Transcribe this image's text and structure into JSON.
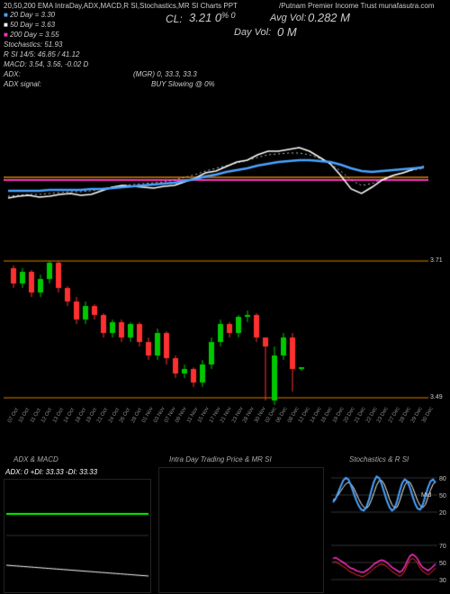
{
  "header": {
    "title_left": "20,50,200  EMA IntraDay,ADX,MACD,R   SI,Stochastics,MR   SI Charts PPT",
    "title_right": "/Putnam Premier Income Trust  munafasutra.com",
    "cl_label": "CL:",
    "cl_value": "3.21 0",
    "cl_unit": "% 0",
    "avg_label": "Avg Vol:",
    "avg_value": "0.282   M",
    "day_vol_label": "Day Vol:",
    "day_vol_value": "0   M"
  },
  "indicators": {
    "lines": [
      {
        "prefix_color": "#4aa3ff",
        "prefix": "■",
        "text": " 20  Day = 3.30"
      },
      {
        "prefix_color": "#ffffff",
        "prefix": "■",
        "text": " 50  Day = 3.63"
      },
      {
        "prefix_color": "#ff30c0",
        "prefix": "■",
        "text": " 200 Day = 3.55"
      },
      {
        "prefix_color": null,
        "prefix": "",
        "text": "Stochastics: 51.93"
      },
      {
        "prefix_color": null,
        "prefix": "",
        "text": "R   SI 14/5: 46.85 / 41.12"
      },
      {
        "prefix_color": null,
        "prefix": "",
        "text": "MACD: 3.54,  3.56, -0.02   D"
      }
    ],
    "mgr": "(MGR) 0, 33.3, 33.3",
    "adx_label": "ADX:",
    "adx_signal_label": "ADX  signal:",
    "adx_signal_value": "BUY Slowing @ 0%"
  },
  "upper_chart": {
    "bg": "#000000",
    "grid_color": "#555555",
    "hline_orange": "#d98000",
    "hline_magenta": "#ff30c0",
    "line_white": "#ffffff",
    "line_blue": "#4aa3ff",
    "dotted": "#bbbbbb",
    "white_series": [
      120,
      118,
      117,
      119,
      118,
      116,
      115,
      117,
      116,
      112,
      108,
      106,
      107,
      108,
      109,
      107,
      106,
      102,
      98,
      92,
      90,
      85,
      80,
      78,
      72,
      68,
      68,
      66,
      64,
      68,
      75,
      82,
      95,
      110,
      115,
      108,
      100,
      95,
      92,
      88,
      85
    ],
    "blue_series": [
      112,
      112,
      112,
      112,
      111,
      111,
      111,
      111,
      110,
      110,
      109,
      108,
      107,
      106,
      105,
      104,
      103,
      101,
      99,
      96,
      94,
      91,
      89,
      87,
      84,
      82,
      80,
      79,
      78,
      78,
      79,
      80,
      83,
      87,
      90,
      91,
      90,
      89,
      88,
      87,
      86
    ],
    "dotted_series": [
      118,
      117,
      116,
      116,
      115,
      114,
      113,
      113,
      112,
      110,
      108,
      106,
      105,
      104,
      103,
      102,
      100,
      97,
      94,
      90,
      87,
      84,
      81,
      78,
      75,
      72,
      71,
      70,
      70,
      72,
      76,
      82,
      90,
      100,
      106,
      104,
      99,
      95,
      92,
      89,
      87
    ],
    "orange_y": 97,
    "magenta_y": 100
  },
  "candle_chart": {
    "up_color": "#00c800",
    "down_color": "#ff3030",
    "hlines": [
      {
        "y": 10,
        "c": "#d98000"
      },
      {
        "y": 162,
        "c": "#d98000"
      }
    ],
    "y_labels": [
      {
        "y": 10,
        "t": "3.71"
      },
      {
        "y": 162,
        "t": "3.49"
      }
    ],
    "candles": [
      {
        "x": 8,
        "o": 18,
        "c": 35,
        "h": 15,
        "l": 40,
        "up": false
      },
      {
        "x": 18,
        "o": 35,
        "c": 22,
        "h": 18,
        "l": 40,
        "up": true
      },
      {
        "x": 28,
        "o": 22,
        "c": 45,
        "h": 20,
        "l": 50,
        "up": false
      },
      {
        "x": 38,
        "o": 45,
        "c": 30,
        "h": 25,
        "l": 50,
        "up": true
      },
      {
        "x": 48,
        "o": 30,
        "c": 12,
        "h": 10,
        "l": 35,
        "up": true
      },
      {
        "x": 58,
        "o": 12,
        "c": 40,
        "h": 10,
        "l": 45,
        "up": false
      },
      {
        "x": 68,
        "o": 40,
        "c": 55,
        "h": 38,
        "l": 60,
        "up": false
      },
      {
        "x": 78,
        "o": 55,
        "c": 75,
        "h": 50,
        "l": 80,
        "up": false
      },
      {
        "x": 88,
        "o": 75,
        "c": 60,
        "h": 55,
        "l": 80,
        "up": true
      },
      {
        "x": 98,
        "o": 60,
        "c": 70,
        "h": 58,
        "l": 75,
        "up": false
      },
      {
        "x": 108,
        "o": 70,
        "c": 90,
        "h": 68,
        "l": 95,
        "up": false
      },
      {
        "x": 118,
        "o": 90,
        "c": 78,
        "h": 75,
        "l": 95,
        "up": true
      },
      {
        "x": 128,
        "o": 78,
        "c": 95,
        "h": 75,
        "l": 100,
        "up": false
      },
      {
        "x": 138,
        "o": 95,
        "c": 80,
        "h": 78,
        "l": 100,
        "up": true
      },
      {
        "x": 148,
        "o": 80,
        "c": 100,
        "h": 78,
        "l": 105,
        "up": false
      },
      {
        "x": 158,
        "o": 100,
        "c": 115,
        "h": 95,
        "l": 120,
        "up": false
      },
      {
        "x": 168,
        "o": 115,
        "c": 90,
        "h": 85,
        "l": 120,
        "up": true
      },
      {
        "x": 178,
        "o": 90,
        "c": 118,
        "h": 88,
        "l": 125,
        "up": false
      },
      {
        "x": 188,
        "o": 118,
        "c": 135,
        "h": 115,
        "l": 140,
        "up": false
      },
      {
        "x": 198,
        "o": 135,
        "c": 130,
        "h": 125,
        "l": 140,
        "up": true
      },
      {
        "x": 208,
        "o": 130,
        "c": 145,
        "h": 128,
        "l": 150,
        "up": false
      },
      {
        "x": 218,
        "o": 145,
        "c": 125,
        "h": 120,
        "l": 150,
        "up": true
      },
      {
        "x": 228,
        "o": 125,
        "c": 100,
        "h": 95,
        "l": 130,
        "up": true
      },
      {
        "x": 238,
        "o": 100,
        "c": 80,
        "h": 75,
        "l": 105,
        "up": true
      },
      {
        "x": 248,
        "o": 80,
        "c": 90,
        "h": 78,
        "l": 95,
        "up": false
      },
      {
        "x": 258,
        "o": 90,
        "c": 72,
        "h": 70,
        "l": 95,
        "up": true
      },
      {
        "x": 268,
        "o": 72,
        "c": 70,
        "h": 65,
        "l": 78,
        "up": true
      },
      {
        "x": 278,
        "o": 70,
        "c": 95,
        "h": 68,
        "l": 100,
        "up": false
      },
      {
        "x": 288,
        "o": 95,
        "c": 105,
        "h": 105,
        "l": 165,
        "up": false
      },
      {
        "x": 298,
        "o": 165,
        "c": 115,
        "h": 105,
        "l": 170,
        "up": true
      },
      {
        "x": 308,
        "o": 115,
        "c": 95,
        "h": 90,
        "l": 120,
        "up": true
      },
      {
        "x": 318,
        "o": 95,
        "c": 130,
        "h": 90,
        "l": 155,
        "up": false
      },
      {
        "x": 328,
        "o": 130,
        "c": 128,
        "h": 128,
        "l": 132,
        "up": true
      }
    ],
    "x_ticks": [
      "07 Oct",
      "10 Oct",
      "11 Oct",
      "12 Oct",
      "13 Oct",
      "14 Oct",
      "18 Oct",
      "19 Oct",
      "21 Oct",
      "24 Oct",
      "26 Oct",
      "28 Oct",
      "01 Nov",
      "03 Nov",
      "07 Nov",
      "09 Nov",
      "11 Nov",
      "15 Nov",
      "17 Nov",
      "21 Nov",
      "23 Nov",
      "28 Nov",
      "30 Nov",
      "02 Dec",
      "06 Dec",
      "08 Dec",
      "12 Dec",
      "14 Dec",
      "16 Dec",
      "19 Dec",
      "20 Dec",
      "21 Dec",
      "22 Dec",
      "23 Dec",
      "27 Dec",
      "28 Dec",
      "29 Dec",
      "30 Dec"
    ]
  },
  "bottom": {
    "labels": {
      "adx_macd": "ADX  & MACD",
      "intra": "Intra  Day Trading Price  & MR   SI",
      "stoch": "Stochastics & R   SI"
    },
    "adx_stat": "ADX: 0  +DI: 33.33 -DI: 33.33",
    "stoch_ticks": [
      "80",
      "50",
      "20"
    ],
    "rsi_ticks": [
      "70",
      "50",
      "30"
    ],
    "colors": {
      "green": "#00ff00",
      "white": "#ffffff",
      "blue": "#4aa3ff",
      "red": "#ff3030",
      "magenta": "#ff30c0"
    },
    "stoch_main": [
      35,
      42,
      55,
      68,
      80,
      85,
      82,
      70,
      55,
      40,
      28,
      20,
      18,
      25,
      40,
      60,
      78,
      88,
      85,
      72,
      55,
      38,
      25,
      18,
      22,
      38,
      58,
      75,
      82,
      78,
      65,
      48,
      32,
      22,
      20,
      30,
      48,
      65,
      78,
      82,
      75
    ],
    "stoch_d": [
      40,
      43,
      50,
      58,
      66,
      73,
      76,
      73,
      65,
      54,
      42,
      32,
      25,
      22,
      28,
      40,
      55,
      70,
      80,
      80,
      72,
      58,
      42,
      30,
      23,
      25,
      38,
      55,
      70,
      78,
      76,
      66,
      52,
      38,
      28,
      24,
      30,
      45,
      60,
      72,
      78
    ],
    "rsi_main": [
      55,
      56,
      54,
      52,
      50,
      48,
      45,
      43,
      42,
      40,
      39,
      38,
      38,
      40,
      42,
      45,
      48,
      50,
      52,
      53,
      52,
      50,
      47,
      44,
      42,
      40,
      38,
      40,
      45,
      52,
      58,
      60,
      58,
      54,
      48,
      44,
      42,
      40,
      42,
      45,
      48
    ]
  }
}
